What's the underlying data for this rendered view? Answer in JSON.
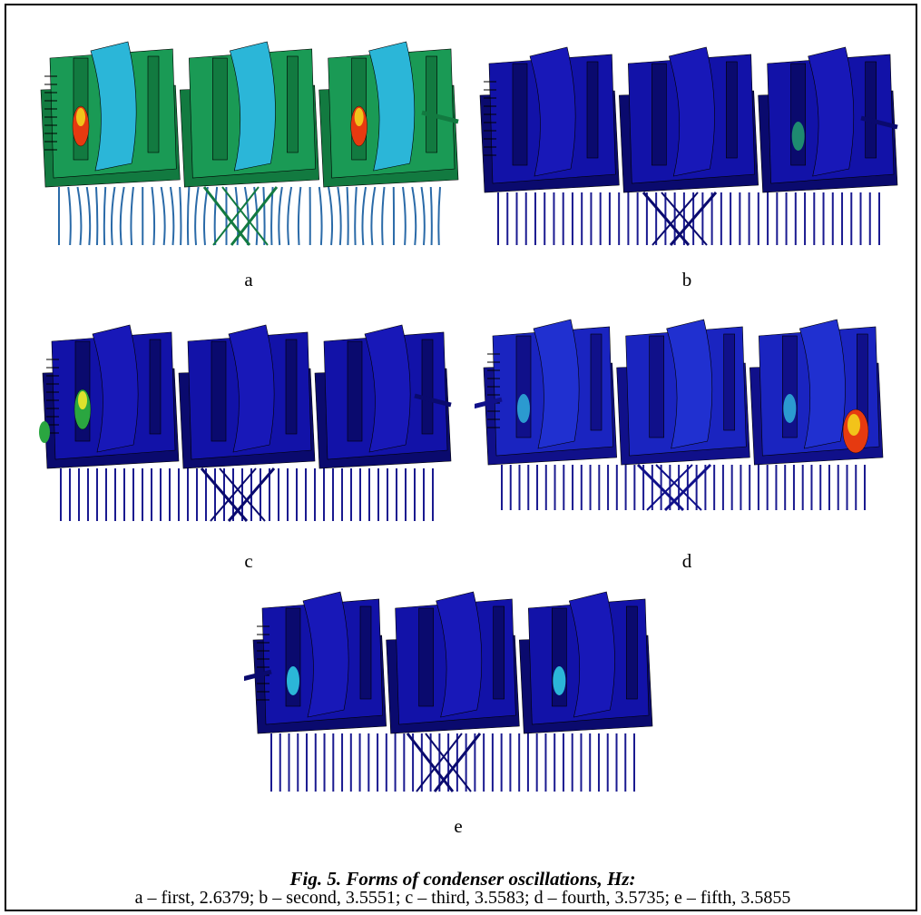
{
  "figure": {
    "panels": [
      {
        "id": "a",
        "label": "a",
        "scheme": "green"
      },
      {
        "id": "b",
        "label": "b",
        "scheme": "blue"
      },
      {
        "id": "c",
        "label": "c",
        "scheme": "blue-left"
      },
      {
        "id": "d",
        "label": "d",
        "scheme": "blue-right"
      },
      {
        "id": "e",
        "label": "e",
        "scheme": "blue-small"
      }
    ],
    "caption_title": "Fig. 5. Forms of condenser oscillations, Hz:",
    "caption_text": "a – first, 2.6379; b – second, 3.5551; c – third, 3.5583; d – fourth, 3.5735; e – fifth, 3.5855"
  },
  "colors": {
    "frame": "#000000",
    "green_body": "#1a9a55",
    "blue_body": "#1212a8",
    "dark_blue": "#0a0a6e",
    "hot": "#e63a10",
    "warm": "#f2c31a",
    "cyan": "#2bb6d8"
  }
}
